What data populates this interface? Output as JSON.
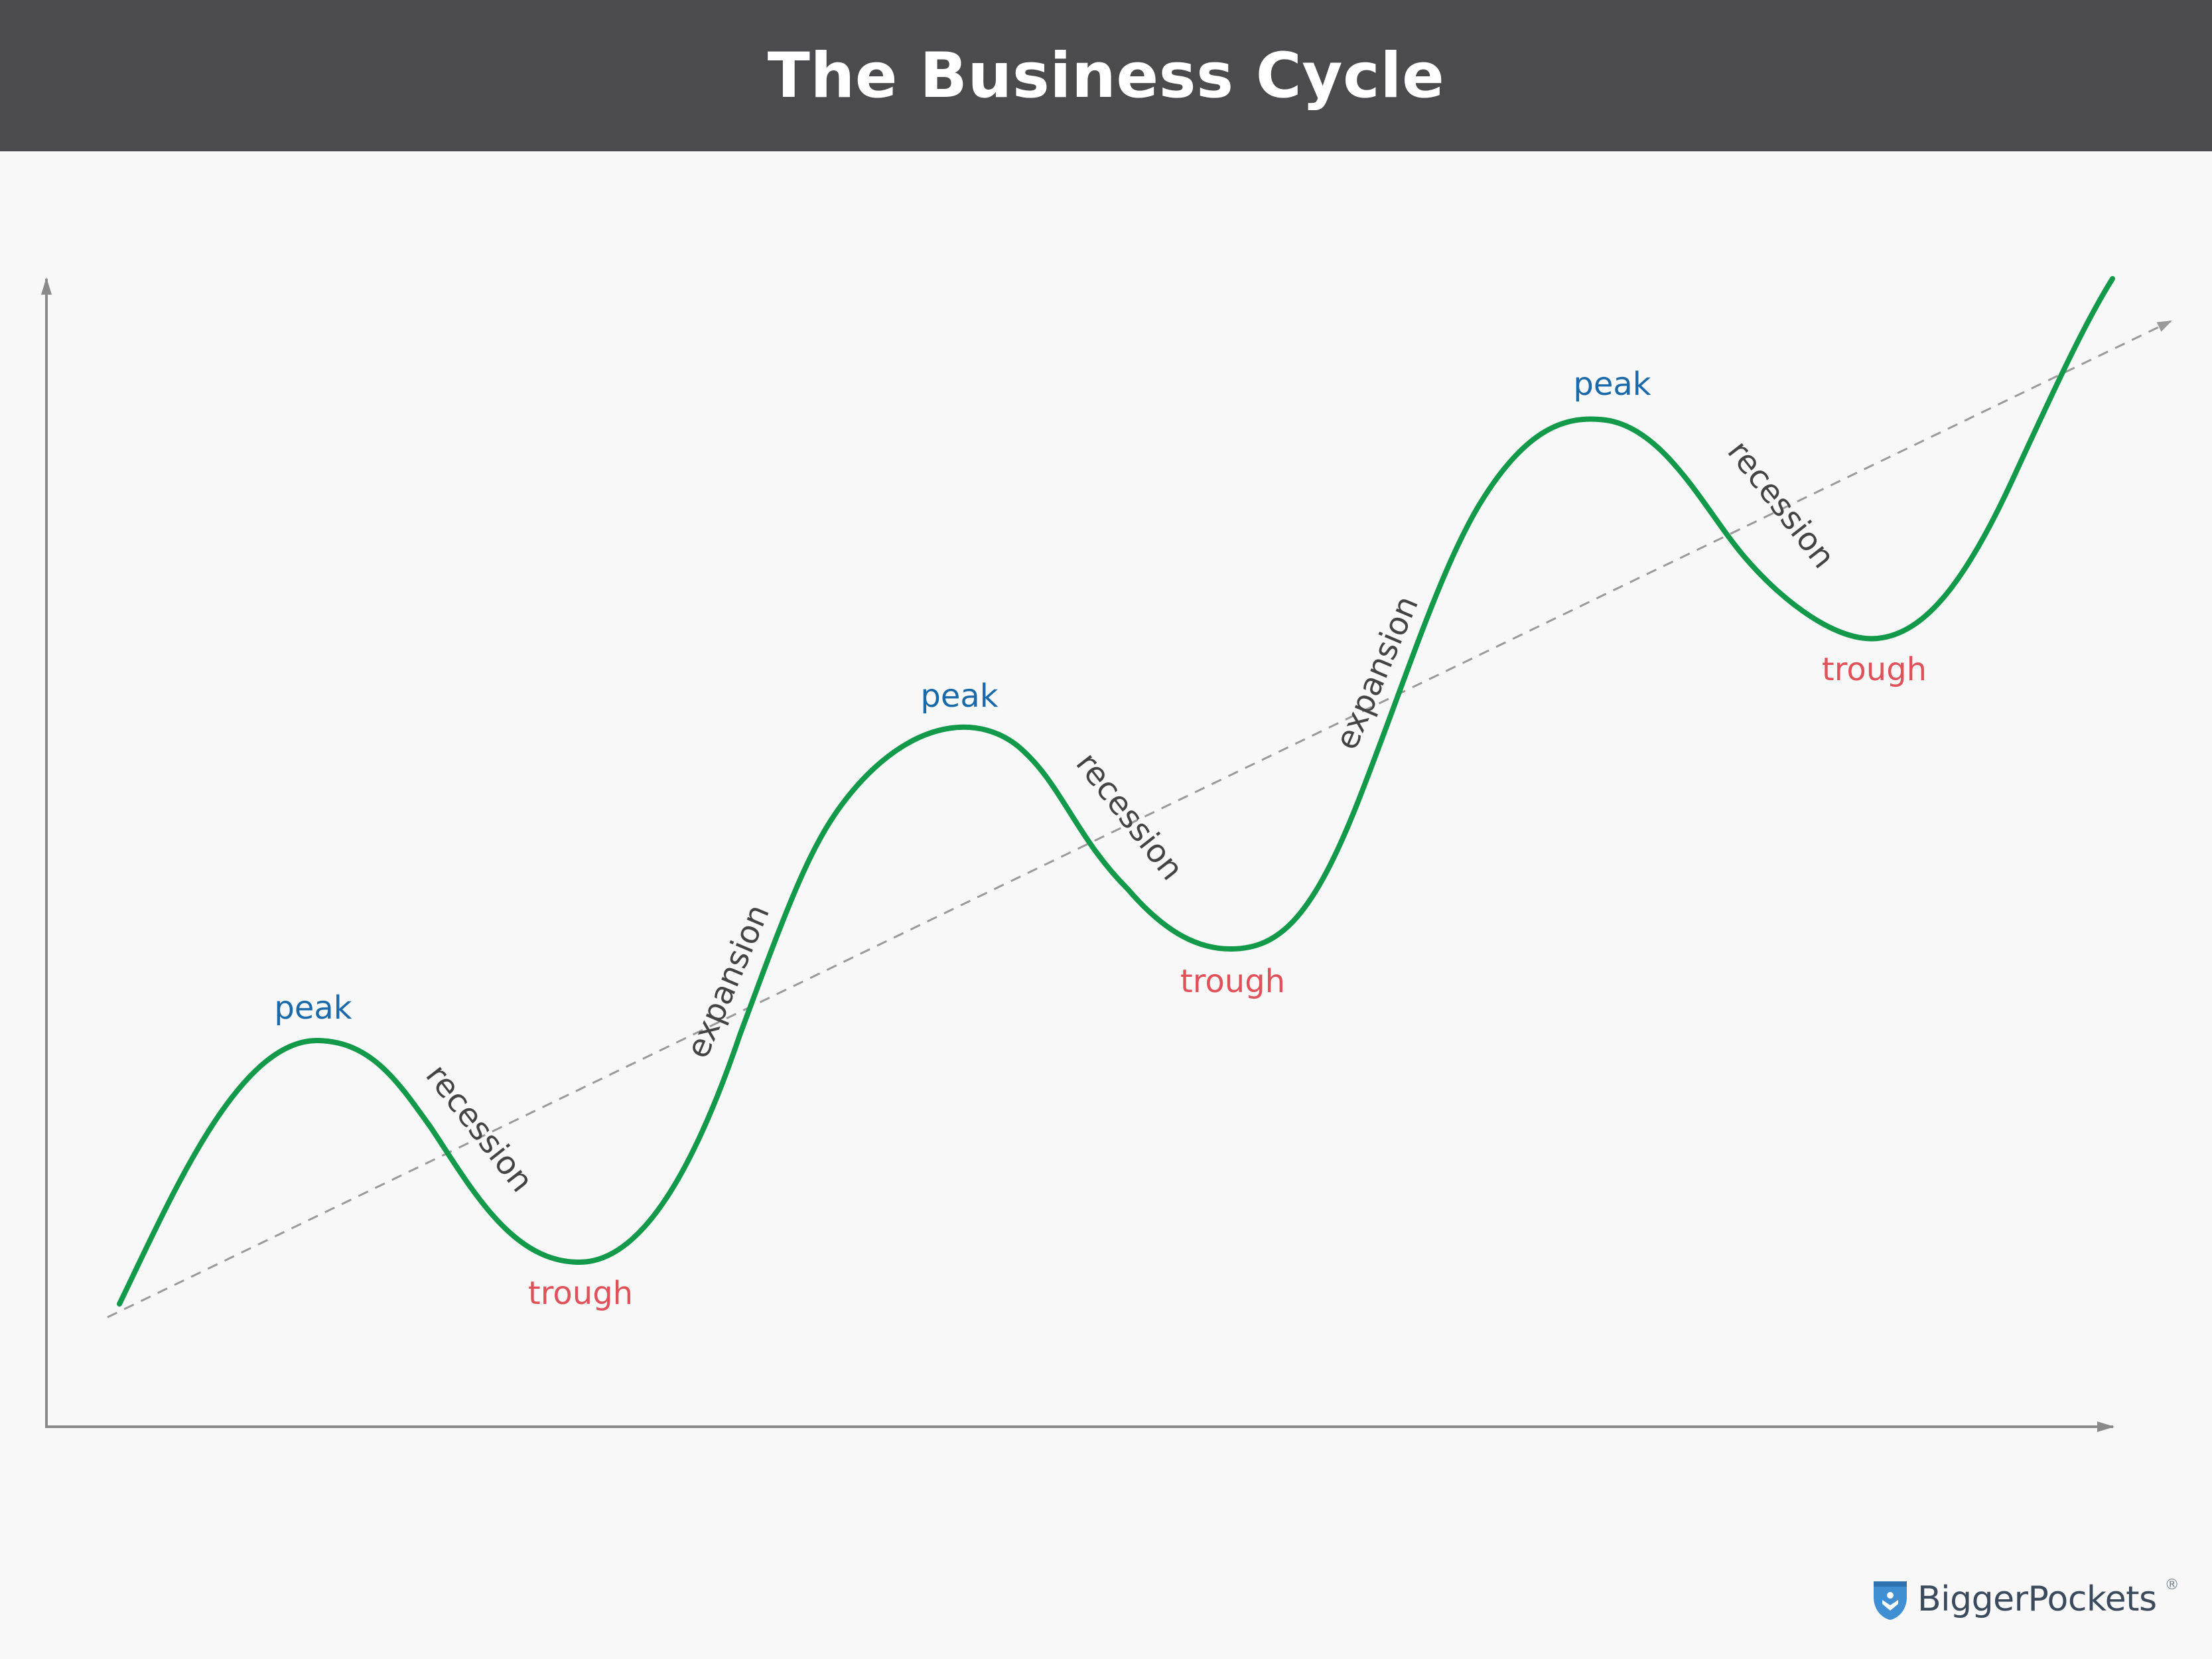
{
  "header": {
    "title": "The Business Cycle"
  },
  "labels": {
    "peaks": [
      "peak",
      "peak",
      "peak"
    ],
    "troughs": [
      "trough",
      "trough",
      "trough"
    ],
    "recessions": [
      "recession",
      "recession",
      "recession"
    ],
    "expansions": [
      "expansion",
      "expansion"
    ]
  },
  "brand": {
    "name": "BiggerPockets",
    "mark": "®",
    "icon": "pocket-logo-icon"
  },
  "colors": {
    "header_bg": "#4b4b4d",
    "curve": "#12994a",
    "peak": "#1a6aaa",
    "trough": "#e0525a",
    "phase": "#444444",
    "axis": "#8a8a8a",
    "trend": "#9a9a9a",
    "brand_blue": "#3f8fd2"
  }
}
